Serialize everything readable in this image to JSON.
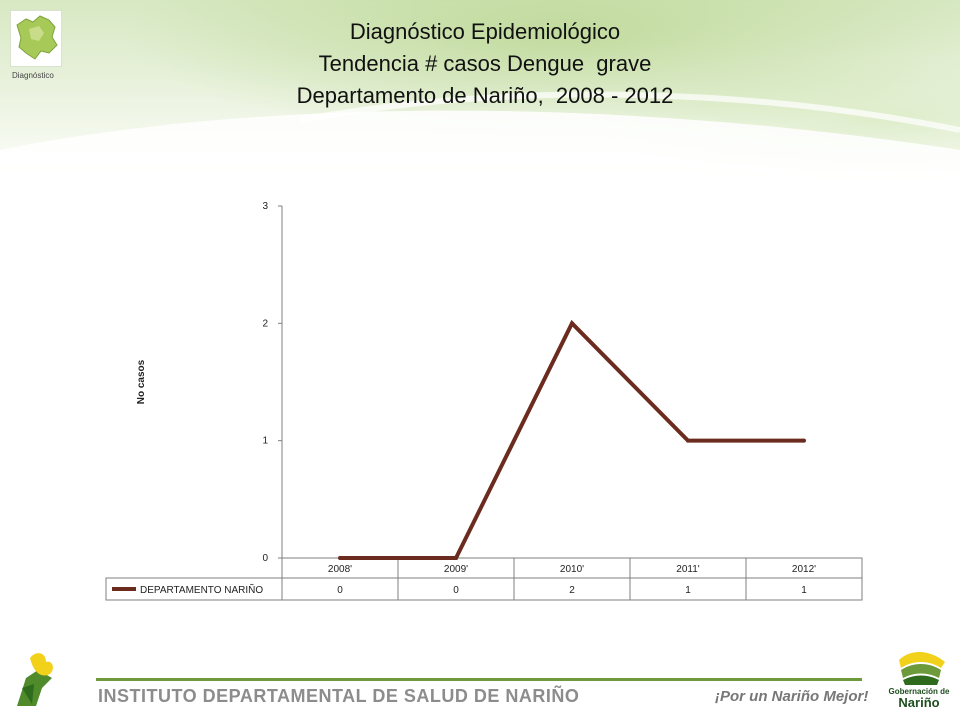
{
  "header": {
    "logo_caption": "Diagnóstico",
    "title_lines": [
      "Diagnóstico Epidemiológico",
      "Tendencia # casos Dengue  grave",
      "Departamento de Nariño,  2008 - 2012"
    ]
  },
  "footer": {
    "institute": "INSTITUTO DEPARTAMENTAL DE SALUD DE NARIÑO",
    "slogan": "¡Por un Nariño Mejor!",
    "gob_small": "Gobernación de",
    "gob_big": "Nariño"
  },
  "colors": {
    "series": "#6b2c1f",
    "axis": "#7f7f7f",
    "brand_green": "#6d9a3a",
    "brand_yellow": "#f2d11a"
  },
  "chart_data": {
    "type": "line",
    "ylabel": "No casos",
    "xlabel": "",
    "ylim": [
      0,
      3
    ],
    "yticks": [
      0,
      1,
      2,
      3
    ],
    "categories": [
      "2008'",
      "2009'",
      "2010'",
      "2011'",
      "2012'"
    ],
    "series": [
      {
        "name": "DEPARTAMENTO NARIÑO",
        "values": [
          0,
          0,
          2,
          1,
          1
        ]
      }
    ],
    "legend": "data-table-below",
    "grid": false
  }
}
